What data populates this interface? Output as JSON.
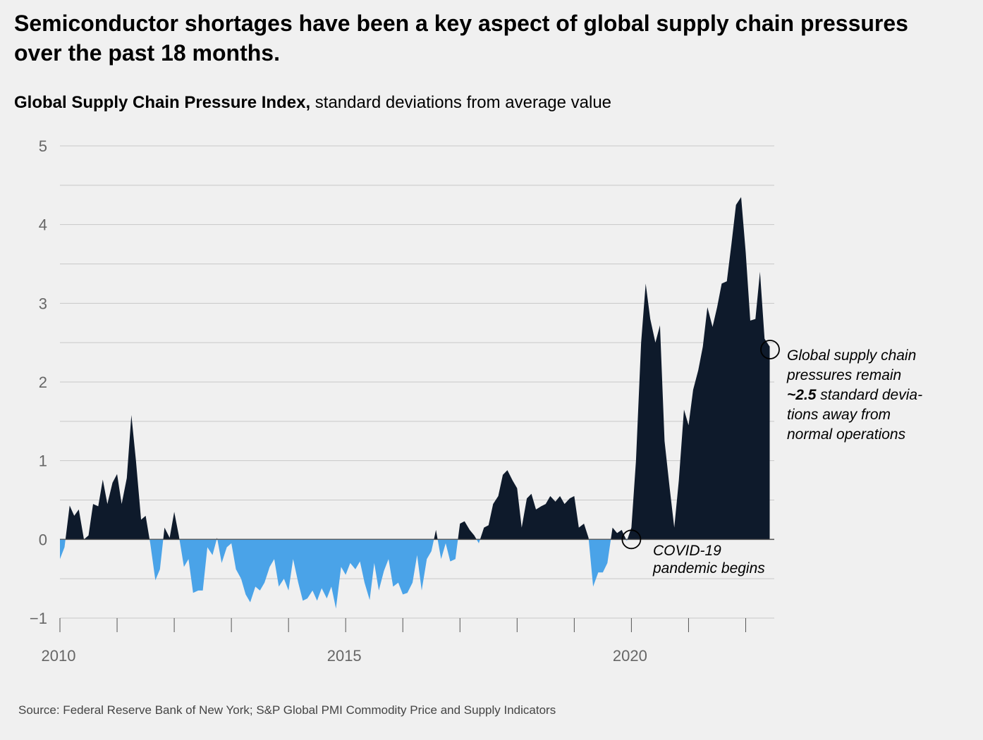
{
  "headline": "Semiconductor shortages have been a key aspect of global supply chain pressures over the past 18 months.",
  "subtitle_bold": "Global Supply Chain Pressure Index,",
  "subtitle_rest": " standard deviations from average value",
  "source": "Source: Federal Reserve Bank of New York; S&P Global PMI Commodity Price and Supply Indicators",
  "colors": {
    "positive": "#0e1a2b",
    "negative": "#4aa3e8",
    "grid": "#c8c8c8"
  },
  "chart_data": {
    "type": "area",
    "title": "Global Supply Chain Pressure Index",
    "ylabel": "standard deviations from average value",
    "ylim": [
      -1,
      5
    ],
    "xlim": [
      2010.0,
      2022.5
    ],
    "yticks": [
      "5",
      "4",
      "3",
      "2",
      "1",
      "0",
      "−1"
    ],
    "xticks": [
      "2010",
      "2015",
      "2020"
    ],
    "grid": true,
    "series": [
      {
        "x": [
          2010.0,
          2010.08,
          2010.17,
          2010.25,
          2010.33,
          2010.42,
          2010.5,
          2010.58,
          2010.67,
          2010.75,
          2010.83,
          2010.92,
          2011.0,
          2011.08,
          2011.17,
          2011.25,
          2011.33,
          2011.42,
          2011.5,
          2011.58,
          2011.67,
          2011.75,
          2011.83,
          2011.92,
          2012.0,
          2012.08,
          2012.17,
          2012.25,
          2012.33,
          2012.42,
          2012.5,
          2012.58,
          2012.67,
          2012.75,
          2012.83,
          2012.92,
          2013.0,
          2013.08,
          2013.17,
          2013.25,
          2013.33,
          2013.42,
          2013.5,
          2013.58,
          2013.67,
          2013.75,
          2013.83,
          2013.92,
          2014.0,
          2014.08,
          2014.17,
          2014.25,
          2014.33,
          2014.42,
          2014.5,
          2014.58,
          2014.67,
          2014.75,
          2014.83,
          2014.92,
          2015.0,
          2015.08,
          2015.17,
          2015.25,
          2015.33,
          2015.42,
          2015.5,
          2015.58,
          2015.67,
          2015.75,
          2015.83,
          2015.92,
          2016.0,
          2016.08,
          2016.17,
          2016.25,
          2016.33,
          2016.42,
          2016.5,
          2016.58,
          2016.67,
          2016.75,
          2016.83,
          2016.92,
          2017.0,
          2017.08,
          2017.17,
          2017.25,
          2017.33,
          2017.42,
          2017.5,
          2017.58,
          2017.67,
          2017.75,
          2017.83,
          2017.92,
          2018.0,
          2018.08,
          2018.17,
          2018.25,
          2018.33,
          2018.42,
          2018.5,
          2018.58,
          2018.67,
          2018.75,
          2018.83,
          2018.92,
          2019.0,
          2019.08,
          2019.17,
          2019.25,
          2019.33,
          2019.42,
          2019.5,
          2019.58,
          2019.67,
          2019.75,
          2019.83,
          2019.92,
          2020.0,
          2020.08,
          2020.17,
          2020.25,
          2020.33,
          2020.42,
          2020.5,
          2020.58,
          2020.67,
          2020.75,
          2020.83,
          2020.92,
          2021.0,
          2021.08,
          2021.17,
          2021.25,
          2021.33,
          2021.42,
          2021.5,
          2021.58,
          2021.67,
          2021.75,
          2021.83,
          2021.92,
          2022.0,
          2022.08,
          2022.17,
          2022.25,
          2022.33,
          2022.42
        ],
        "values": [
          -0.25,
          -0.1,
          0.43,
          0.3,
          0.38,
          0.0,
          0.05,
          0.45,
          0.42,
          0.76,
          0.45,
          0.72,
          0.83,
          0.45,
          0.78,
          1.58,
          1.0,
          0.25,
          0.3,
          -0.05,
          -0.52,
          -0.38,
          0.15,
          0.02,
          0.35,
          0.05,
          -0.35,
          -0.25,
          -0.68,
          -0.65,
          -0.65,
          -0.1,
          -0.2,
          0.02,
          -0.3,
          -0.1,
          -0.05,
          -0.38,
          -0.5,
          -0.7,
          -0.8,
          -0.6,
          -0.65,
          -0.55,
          -0.35,
          -0.25,
          -0.6,
          -0.5,
          -0.65,
          -0.25,
          -0.55,
          -0.78,
          -0.75,
          -0.65,
          -0.78,
          -0.62,
          -0.75,
          -0.6,
          -0.88,
          -0.35,
          -0.45,
          -0.3,
          -0.38,
          -0.28,
          -0.55,
          -0.77,
          -0.3,
          -0.65,
          -0.4,
          -0.25,
          -0.6,
          -0.55,
          -0.7,
          -0.68,
          -0.55,
          -0.2,
          -0.65,
          -0.25,
          -0.15,
          0.12,
          -0.25,
          -0.05,
          -0.28,
          -0.25,
          0.2,
          0.23,
          0.12,
          0.05,
          -0.05,
          0.15,
          0.18,
          0.45,
          0.55,
          0.82,
          0.88,
          0.75,
          0.65,
          0.15,
          0.52,
          0.58,
          0.38,
          0.42,
          0.45,
          0.55,
          0.48,
          0.55,
          0.45,
          0.52,
          0.55,
          0.15,
          0.2,
          0.02,
          -0.6,
          -0.42,
          -0.42,
          -0.3,
          0.15,
          0.08,
          0.12,
          -0.02,
          0.15,
          1.0,
          2.5,
          3.25,
          2.8,
          2.5,
          2.72,
          1.25,
          0.65,
          0.15,
          0.75,
          1.65,
          1.45,
          1.9,
          2.15,
          2.45,
          2.95,
          2.7,
          2.95,
          3.25,
          3.28,
          3.75,
          4.25,
          4.35,
          3.65,
          2.78,
          2.8,
          3.4,
          2.55,
          2.45
        ]
      }
    ],
    "annotations": [
      {
        "x": 2020.0,
        "y": 0.0,
        "lines": [
          "COVID-19",
          "pandemic begins"
        ]
      },
      {
        "x": 2022.42,
        "y": 2.45,
        "lines": [
          "Global supply chain",
          "pressures remain",
          "~2.5 standard devia-",
          "tions away from",
          "normal operations"
        ],
        "bold_prefix": "~2.5"
      }
    ]
  }
}
